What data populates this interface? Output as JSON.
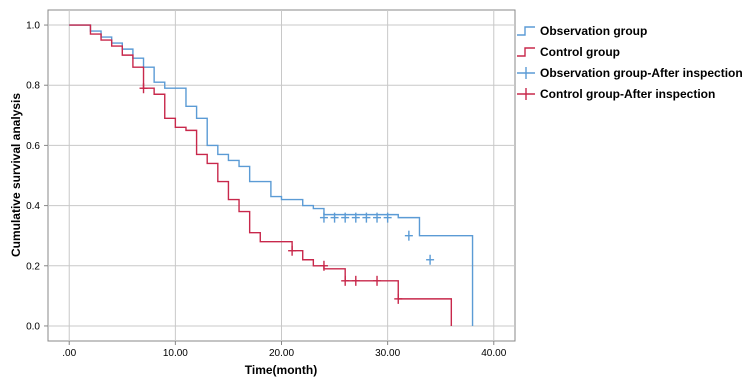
{
  "chart_data": {
    "type": "line",
    "subtype": "kaplan-meier-step",
    "xlabel": "Time(month)",
    "ylabel": "Cumulative survival analysis",
    "xlim": [
      -2,
      42
    ],
    "ylim": [
      -0.05,
      1.05
    ],
    "x_ticks": [
      0,
      10,
      20,
      30,
      40
    ],
    "x_tick_labels": [
      ".00",
      "10.00",
      "20.00",
      "30.00",
      "40.00"
    ],
    "y_ticks": [
      0,
      0.2,
      0.4,
      0.6,
      0.8,
      1.0
    ],
    "y_tick_labels": [
      "0.0",
      "0.2",
      "0.4",
      "0.6",
      "0.8",
      "1.0"
    ],
    "grid": true,
    "legend_position": "top-right, outside plot",
    "series": [
      {
        "name": "Observation group",
        "color": "#5b9bd5",
        "x": [
          0,
          2,
          3,
          4,
          5,
          6,
          7,
          8,
          9,
          11,
          12,
          13,
          14,
          15,
          16,
          17,
          19,
          20,
          22,
          23,
          24,
          31,
          33,
          38
        ],
        "y": [
          1.0,
          0.98,
          0.96,
          0.94,
          0.92,
          0.89,
          0.86,
          0.81,
          0.79,
          0.73,
          0.69,
          0.6,
          0.57,
          0.55,
          0.53,
          0.48,
          0.43,
          0.42,
          0.4,
          0.39,
          0.37,
          0.36,
          0.3,
          0.22
        ],
        "end_x": 38,
        "end_y": 0.0
      },
      {
        "name": "Control group",
        "color": "#c8284b",
        "x": [
          0,
          2,
          3,
          4,
          5,
          6,
          7,
          8,
          9,
          10,
          11,
          12,
          13,
          14,
          15,
          16,
          17,
          18,
          21,
          22,
          23,
          24,
          26,
          31
        ],
        "y": [
          1.0,
          0.97,
          0.95,
          0.93,
          0.9,
          0.86,
          0.79,
          0.77,
          0.69,
          0.66,
          0.65,
          0.57,
          0.54,
          0.48,
          0.42,
          0.38,
          0.31,
          0.28,
          0.25,
          0.22,
          0.2,
          0.19,
          0.15,
          0.09
        ],
        "end_x": 36,
        "end_y": 0.0
      },
      {
        "name": "Observation group-After inspection",
        "color": "#5b9bd5",
        "marker": "+",
        "points": [
          [
            24,
            0.36
          ],
          [
            25,
            0.36
          ],
          [
            26,
            0.36
          ],
          [
            27,
            0.36
          ],
          [
            28,
            0.36
          ],
          [
            29,
            0.36
          ],
          [
            30,
            0.36
          ],
          [
            32,
            0.3
          ],
          [
            34,
            0.22
          ]
        ]
      },
      {
        "name": "Control group-After inspection",
        "color": "#c8284b",
        "marker": "+",
        "points": [
          [
            7,
            0.79
          ],
          [
            21,
            0.25
          ],
          [
            24,
            0.2
          ],
          [
            26,
            0.15
          ],
          [
            27,
            0.15
          ],
          [
            29,
            0.15
          ],
          [
            31,
            0.09
          ]
        ]
      }
    ]
  }
}
